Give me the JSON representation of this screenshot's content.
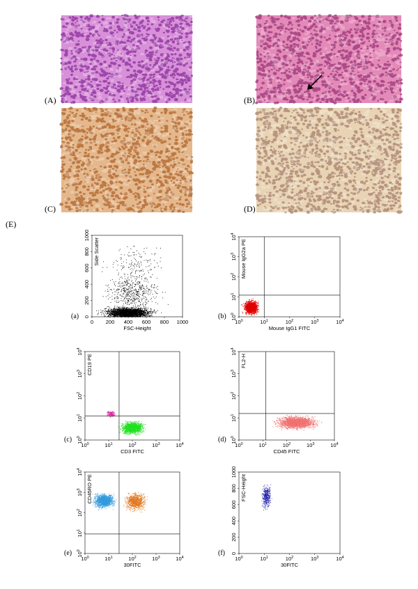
{
  "figure": {
    "label": "(E)",
    "images": [
      {
        "label": "(A)",
        "colors": [
          "#d890d8",
          "#8a2f9c"
        ]
      },
      {
        "label": "(B)",
        "colors": [
          "#e48ab8",
          "#9a3578"
        ]
      },
      {
        "label": "(C)",
        "colors": [
          "#e4b88c",
          "#b0642c"
        ]
      },
      {
        "label": "(D)",
        "colors": [
          "#e8d4b4",
          "#a8806c"
        ]
      }
    ],
    "plots": [
      {
        "label": "(a)",
        "xlabel": "FSC-Height",
        "ylabel": "Side Scatter",
        "xticks": [
          "0",
          "200",
          "400",
          "600",
          "800",
          "1000"
        ],
        "yticks": [
          "0",
          "200",
          "400",
          "600",
          "800",
          "1000"
        ],
        "colors": [
          "#000000"
        ]
      },
      {
        "label": "(b)",
        "xlabel": "Mouse IgG1 FITC",
        "ylabel": "Mouse IgG2a PE",
        "xticks": [
          {
            "base": "10",
            "exp": "0"
          },
          {
            "base": "10",
            "exp": "1"
          },
          {
            "base": "10",
            "exp": "2"
          },
          {
            "base": "10",
            "exp": "3"
          },
          {
            "base": "10",
            "exp": "4"
          }
        ],
        "yticks": [
          {
            "base": "10",
            "exp": "0"
          },
          {
            "base": "10",
            "exp": "1"
          },
          {
            "base": "10",
            "exp": "2"
          },
          {
            "base": "10",
            "exp": "3"
          },
          {
            "base": "10",
            "exp": "4"
          }
        ],
        "colors": [
          "#e00000"
        ]
      },
      {
        "label": "(c)",
        "xlabel": "CD3 FITC",
        "ylabel": "CD19 PE",
        "xticks": [
          {
            "base": "10",
            "exp": "0"
          },
          {
            "base": "10",
            "exp": "1"
          },
          {
            "base": "10",
            "exp": "2"
          },
          {
            "base": "10",
            "exp": "3"
          },
          {
            "base": "10",
            "exp": "4"
          }
        ],
        "yticks": [
          {
            "base": "10",
            "exp": "0"
          },
          {
            "base": "10",
            "exp": "1"
          },
          {
            "base": "10",
            "exp": "2"
          },
          {
            "base": "10",
            "exp": "3"
          },
          {
            "base": "10",
            "exp": "4"
          }
        ],
        "colors": [
          "#e020a0",
          "#20e020"
        ]
      },
      {
        "label": "(d)",
        "xlabel": "CD45 FITC",
        "ylabel": "FL2-H",
        "xticks": [
          {
            "base": "10",
            "exp": "0"
          },
          {
            "base": "10",
            "exp": "1"
          },
          {
            "base": "10",
            "exp": "2"
          },
          {
            "base": "10",
            "exp": "3"
          },
          {
            "base": "10",
            "exp": "4"
          }
        ],
        "yticks": [
          {
            "base": "10",
            "exp": "0"
          },
          {
            "base": "10",
            "exp": "1"
          },
          {
            "base": "10",
            "exp": "2"
          },
          {
            "base": "10",
            "exp": "3"
          },
          {
            "base": "10",
            "exp": "4"
          }
        ],
        "colors": [
          "#f07070"
        ]
      },
      {
        "label": "(e)",
        "xlabel": "30FITC",
        "ylabel": "CD45RO PE",
        "xticks": [
          {
            "base": "10",
            "exp": "0"
          },
          {
            "base": "10",
            "exp": "1"
          },
          {
            "base": "10",
            "exp": "2"
          },
          {
            "base": "10",
            "exp": "3"
          },
          {
            "base": "10",
            "exp": "4"
          }
        ],
        "yticks": [
          {
            "base": "10",
            "exp": "0"
          },
          {
            "base": "10",
            "exp": "1"
          },
          {
            "base": "10",
            "exp": "2"
          },
          {
            "base": "10",
            "exp": "3"
          },
          {
            "base": "10",
            "exp": "4"
          }
        ],
        "colors": [
          "#3399dd",
          "#e07820"
        ]
      },
      {
        "label": "(f)",
        "xlabel": "30FITC",
        "ylabel": "FSC-Height",
        "xticks": [
          {
            "base": "10",
            "exp": "0"
          },
          {
            "base": "10",
            "exp": "1"
          },
          {
            "base": "10",
            "exp": "2"
          },
          {
            "base": "10",
            "exp": "3"
          },
          {
            "base": "10",
            "exp": "4"
          }
        ],
        "yticks": [
          "0",
          "200",
          "400",
          "600",
          "800",
          "1000"
        ],
        "colors": [
          "#2222aa"
        ]
      }
    ]
  }
}
